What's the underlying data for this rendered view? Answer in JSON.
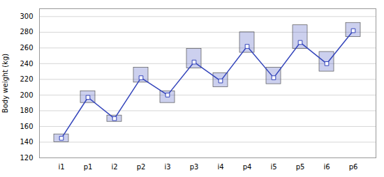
{
  "chart_data": {
    "type": "line",
    "categories": [
      "i1",
      "p1",
      "i2",
      "p2",
      "i3",
      "p3",
      "i4",
      "p4",
      "i5",
      "p5",
      "i6",
      "p6"
    ],
    "values": [
      145,
      197,
      170,
      222,
      200,
      242,
      218,
      262,
      222,
      267,
      240,
      282
    ],
    "error_lower": [
      5,
      7,
      4,
      6,
      10,
      8,
      8,
      8,
      8,
      8,
      10,
      8
    ],
    "error_upper": [
      5,
      8,
      4,
      13,
      5,
      17,
      10,
      18,
      13,
      22,
      15,
      10
    ],
    "color": "#3344bb",
    "marker": "square",
    "ylabel": "Body weight (kg)",
    "ylim": [
      120,
      310
    ],
    "yticks": [
      120,
      140,
      160,
      180,
      200,
      220,
      240,
      260,
      280,
      300
    ],
    "grid": true
  }
}
